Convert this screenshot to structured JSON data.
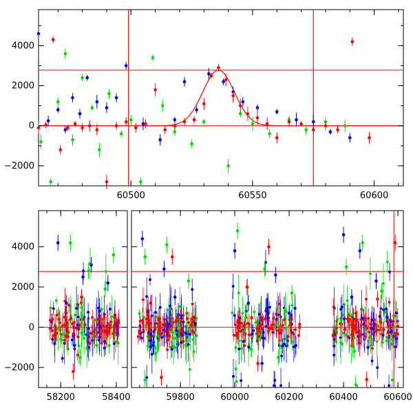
{
  "colors": {
    "red": "#ff0000",
    "green": "#00dd00",
    "blue": "#0000ff",
    "axis": "#000000"
  },
  "chart_data": [
    {
      "type": "scatter",
      "title": "",
      "xlabel": "",
      "ylabel": "",
      "xlim": [
        60462,
        60612
      ],
      "ylim": [
        -3000,
        5800
      ],
      "xticks": [
        60500,
        60550,
        60600
      ],
      "yticks": [
        -2000,
        0,
        2000,
        4000
      ],
      "hlines": [
        0,
        2780
      ],
      "vlines": [
        60499,
        60575
      ],
      "model_curve": {
        "center": 60536,
        "width": 6.5,
        "peak": 2780
      },
      "series": [
        {
          "color": "blue",
          "x": [
            60462,
            60466,
            60470,
            60473,
            60476,
            60479,
            60482,
            60486,
            60490,
            60494,
            60498,
            60505,
            60512,
            60518,
            60522,
            60527,
            60532,
            60538,
            60542,
            60546,
            60552,
            60560,
            60568,
            60575,
            60582,
            60590
          ],
          "y": [
            4600,
            250,
            800,
            -200,
            1400,
            600,
            2400,
            1200,
            900,
            1400,
            3000,
            100,
            -700,
            300,
            2200,
            800,
            2600,
            2200,
            1700,
            1200,
            900,
            700,
            300,
            200,
            -300,
            -600
          ]
        },
        {
          "color": "green",
          "x": [
            60463,
            60467,
            60470,
            60473,
            60476,
            60480,
            60484,
            60487,
            60491,
            60496,
            60500,
            60504,
            60509,
            60513,
            60518,
            60525,
            60530,
            60540,
            60545,
            60550,
            60557,
            60565,
            60572,
            60580,
            60588
          ],
          "y": [
            -800,
            -2800,
            1200,
            3600,
            -700,
            2400,
            900,
            -1200,
            1600,
            -400,
            300,
            -2800,
            3400,
            1000,
            -300,
            -900,
            200,
            -2000,
            600,
            100,
            -400,
            300,
            -200,
            200,
            0
          ]
        },
        {
          "color": "red",
          "x": [
            60462,
            60465,
            60468,
            60471,
            60474,
            60477,
            60480,
            60483,
            60486,
            60490,
            60494,
            60498,
            60502,
            60506,
            60510,
            60514,
            60518,
            60522,
            60526,
            60530,
            60533,
            60536,
            60539,
            60542,
            60545,
            60548,
            60552,
            60556,
            60560,
            60565,
            60570,
            60575,
            60580,
            60585,
            60591,
            60598
          ],
          "y": [
            -100,
            50,
            4300,
            -1200,
            -100,
            100,
            -100,
            0,
            -200,
            -2800,
            0,
            200,
            -100,
            100,
            1800,
            -200,
            0,
            200,
            300,
            1100,
            2500,
            2900,
            2300,
            1500,
            1000,
            600,
            400,
            100,
            -600,
            200,
            100,
            -200,
            0,
            -200,
            4200,
            -600
          ]
        }
      ]
    },
    {
      "type": "scatter",
      "title": "",
      "xlabel": "",
      "ylabel": "",
      "ylim": [
        -3000,
        5800
      ],
      "yticks": [
        -2000,
        0,
        2000,
        4000
      ],
      "xticks": [
        58200,
        58400,
        59800,
        60000,
        60200,
        60400,
        60600
      ],
      "hlines": [
        0,
        2780
      ],
      "segments": [
        {
          "xlim": [
            58120,
            58440
          ],
          "range": [
            58180,
            58420
          ]
        },
        {
          "xlim": [
            59620,
            60620
          ],
          "range": [
            59640,
            60600
          ]
        }
      ],
      "series": [
        {
          "color": "blue",
          "x": [
            58190,
            58220,
            58250,
            58280,
            58310,
            58340,
            58370,
            58400,
            59660,
            59700,
            59740,
            59780,
            59820,
            60000,
            60050,
            60100,
            60150,
            60200,
            60400,
            60430,
            60460,
            60490,
            60520,
            60560
          ],
          "y": [
            4200,
            1200,
            -900,
            2500,
            3100,
            800,
            2200,
            100,
            4400,
            -900,
            2900,
            1500,
            -300,
            3800,
            1200,
            -1800,
            2600,
            700,
            4600,
            1500,
            3800,
            -1000,
            2300,
            500
          ]
        },
        {
          "color": "green",
          "x": [
            58200,
            58235,
            58270,
            58300,
            58330,
            58360,
            58390,
            59670,
            59710,
            59750,
            59790,
            59830,
            60010,
            60060,
            60110,
            60160,
            60210,
            60410,
            60440,
            60470,
            60500,
            60540,
            60580
          ],
          "y": [
            -600,
            4200,
            -1500,
            2800,
            -900,
            1900,
            3600,
            3500,
            -1300,
            4100,
            -600,
            2300,
            4800,
            -1100,
            2900,
            -1500,
            1700,
            3000,
            -1200,
            4200,
            -900,
            1800,
            -600
          ]
        },
        {
          "color": "red",
          "x": [
            58185,
            58215,
            58245,
            58275,
            58305,
            58335,
            58365,
            58395,
            59650,
            59690,
            59730,
            59770,
            59810,
            59840,
            60005,
            60045,
            60085,
            60125,
            60165,
            60205,
            60405,
            60445,
            60485,
            60525,
            60565,
            60590
          ],
          "y": [
            -300,
            500,
            -2200,
            1500,
            -800,
            400,
            -300,
            100,
            -200,
            1200,
            -2500,
            3500,
            -700,
            100,
            -400,
            2000,
            -1800,
            4000,
            -300,
            200,
            -100,
            700,
            -2600,
            1400,
            100,
            4200
          ]
        }
      ]
    }
  ]
}
